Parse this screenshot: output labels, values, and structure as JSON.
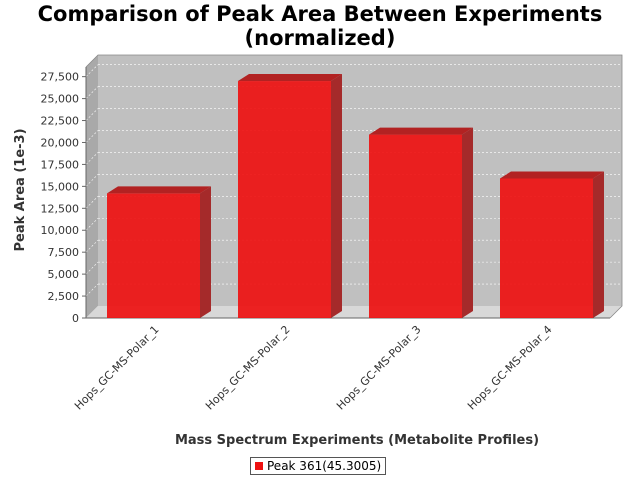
{
  "title_line1": "Comparison of Peak Area Between Experiments",
  "title_line2": "(normalized)",
  "chart_data": {
    "type": "bar",
    "title": "Comparison of Peak Area Between Experiments (normalized)",
    "xlabel": "Mass Spectrum Experiments (Metabolite Profiles)",
    "ylabel": "Peak Area (1e-3)",
    "categories": [
      "Hops_GC-MS-Polar_1",
      "Hops_GC-MS-Polar_2",
      "Hops_GC-MS-Polar_3",
      "Hops_GC-MS-Polar_4"
    ],
    "series": [
      {
        "name": "Peak 361(45.3005)",
        "values": [
          14200,
          27000,
          20900,
          15900
        ],
        "color": "#ee1111"
      }
    ],
    "ylim": [
      0,
      28600
    ],
    "yticks": [
      0,
      2500,
      5000,
      7500,
      10000,
      12500,
      15000,
      17500,
      20000,
      22500,
      25000,
      27500
    ],
    "ytick_labels": [
      "0",
      "2,500",
      "5,000",
      "7,500",
      "10,000",
      "12,500",
      "15,000",
      "17,500",
      "20,000",
      "22,500",
      "25,000",
      "27,500"
    ],
    "grid": true,
    "legend_position": "bottom-center",
    "plot_background": "#c0c0c0",
    "bar_color": "#ee1111"
  }
}
